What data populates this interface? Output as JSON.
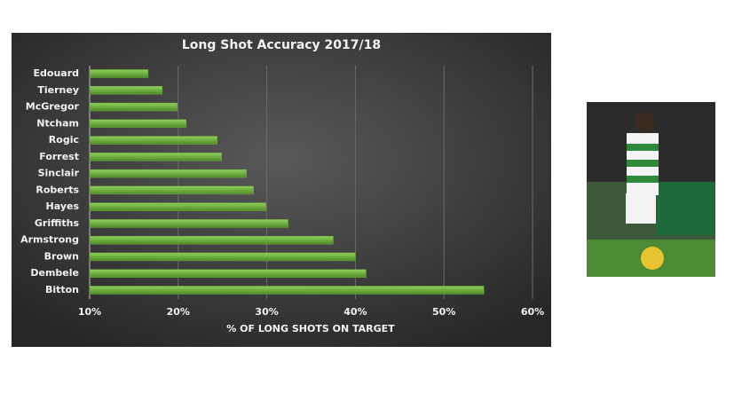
{
  "chart_data": {
    "type": "bar",
    "orientation": "horizontal",
    "title": "Long Shot Accuracy 2017/18",
    "x_label": "% OF LONG SHOTS ON TARGET",
    "categories": [
      "Edouard",
      "Tierney",
      "McGregor",
      "Ntcham",
      "Rogic",
      "Forrest",
      "Sinclair",
      "Roberts",
      "Hayes",
      "Griffiths",
      "Armstrong",
      "Brown",
      "Dembele",
      "Bitton"
    ],
    "values": [
      16.6,
      18.2,
      19.9,
      20.9,
      24.4,
      24.9,
      27.7,
      28.5,
      29.9,
      32.4,
      37.5,
      40.0,
      41.2,
      54.5
    ],
    "color": "#6cab3c",
    "xlim": [
      10,
      60
    ],
    "xticks": [
      {
        "value": 10,
        "label": "10%"
      },
      {
        "value": 20,
        "label": "20%"
      },
      {
        "value": 30,
        "label": "30%"
      },
      {
        "value": 40,
        "label": "40%"
      },
      {
        "value": 50,
        "label": "50%"
      },
      {
        "value": 60,
        "label": "60%"
      }
    ],
    "grid": true
  }
}
